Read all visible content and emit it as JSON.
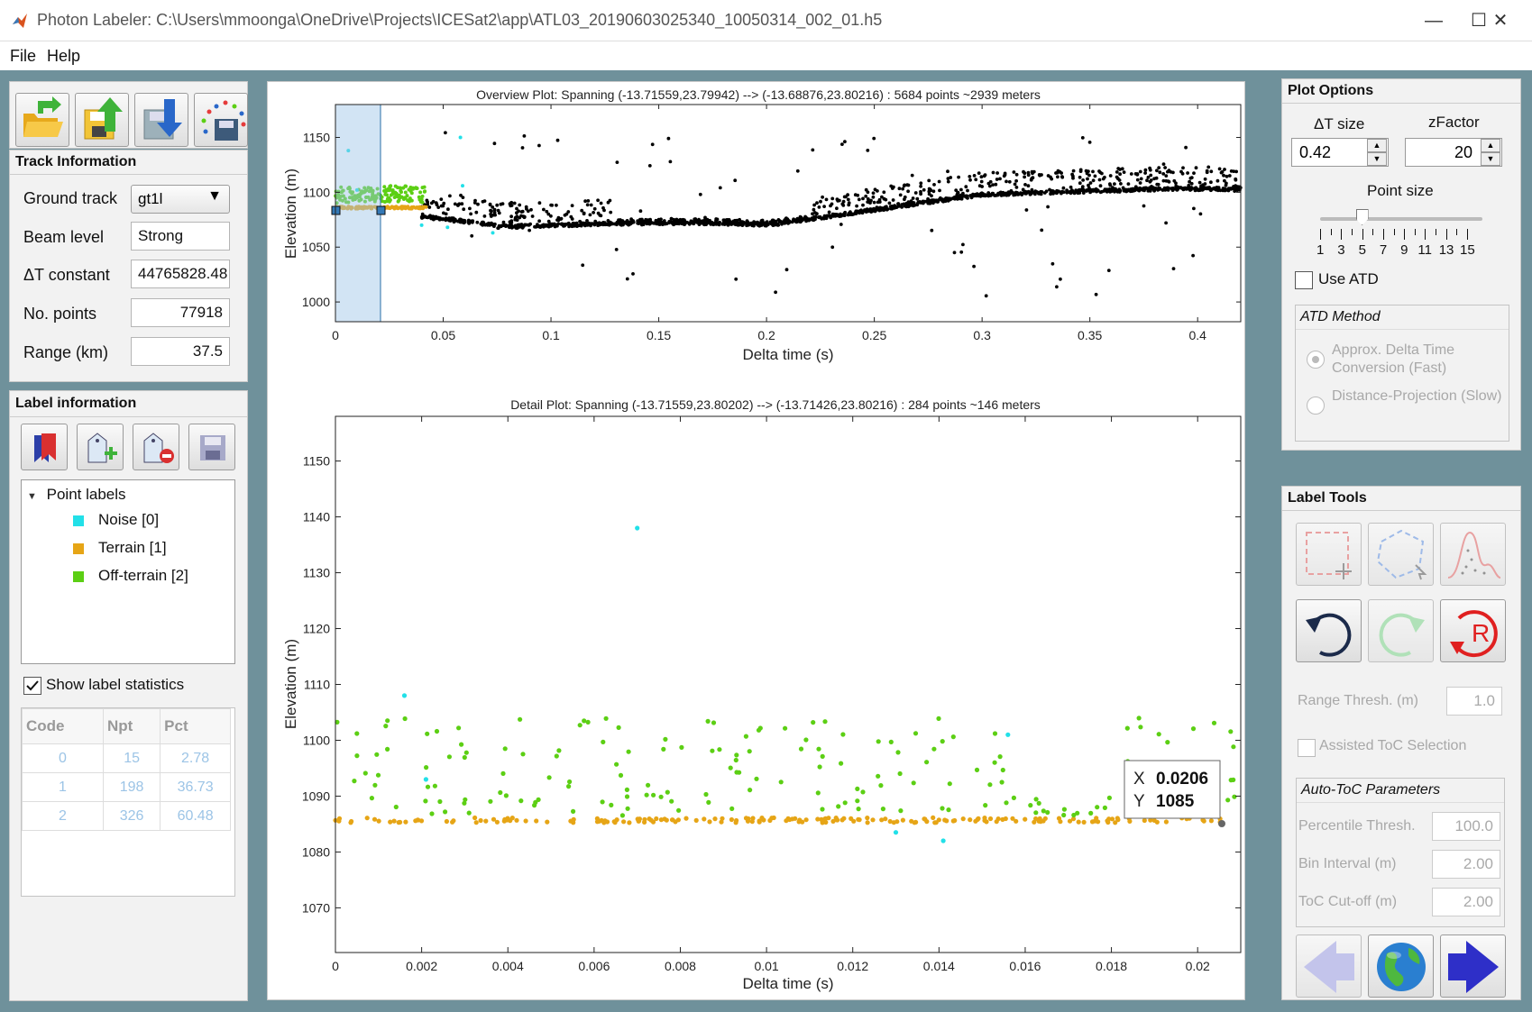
{
  "window": {
    "title": "Photon Labeler: C:\\Users\\mmoonga\\OneDrive\\Projects\\ICESat2\\app\\ATL03_20190603025340_10050314_002_01.h5",
    "minimize": "—",
    "maximize": "☐",
    "close": "✕"
  },
  "menu": {
    "file": "File",
    "help": "Help"
  },
  "toolbar": {
    "icons": [
      "open-folder-icon",
      "save-up-icon",
      "save-down-icon",
      "save-points-icon"
    ]
  },
  "track": {
    "title": "Track Information",
    "ground_track_label": "Ground track",
    "ground_track_value": "gt1l",
    "beam_level_label": "Beam level",
    "beam_level_value": "Strong",
    "dt_constant_label": "ΔT constant",
    "dt_constant_value": "44765828.48",
    "npoints_label": "No. points",
    "npoints_value": "77918",
    "range_label": "Range (km)",
    "range_value": "37.5"
  },
  "labels": {
    "title": "Label information",
    "tree_root": "Point labels",
    "items": [
      {
        "name": "Noise [0]",
        "color": "#22e0e8"
      },
      {
        "name": "Terrain [1]",
        "color": "#e6a516"
      },
      {
        "name": "Off-terrain [2]",
        "color": "#5ccf14"
      }
    ],
    "show_stats_label": "Show label statistics",
    "stats_headers": [
      "Code",
      "Npt",
      "Pct"
    ],
    "stats_rows": [
      [
        "0",
        "15",
        "2.78"
      ],
      [
        "1",
        "198",
        "36.73"
      ],
      [
        "2",
        "326",
        "60.48"
      ]
    ]
  },
  "overview": {
    "title": "Overview Plot: Spanning (-13.71559,23.79942) --> (-13.68876,23.80216) : 5684 points ~2939 meters",
    "xlabel": "Delta time (s)",
    "ylabel": "Elevation (m)",
    "xticks": [
      "0",
      "0.05",
      "0.1",
      "0.15",
      "0.2",
      "0.25",
      "0.3",
      "0.35",
      "0.4"
    ],
    "yticks": [
      "1000",
      "1050",
      "1100",
      "1150"
    ]
  },
  "detail": {
    "title": "Detail Plot: Spanning (-13.71559,23.80202) --> (-13.71426,23.80216) : 284 points ~146 meters",
    "xlabel": "Delta time (s)",
    "ylabel": "Elevation (m)",
    "xticks": [
      "0",
      "0.002",
      "0.004",
      "0.006",
      "0.008",
      "0.01",
      "0.012",
      "0.014",
      "0.016",
      "0.018",
      "0.02"
    ],
    "yticks": [
      "1070",
      "1080",
      "1090",
      "1100",
      "1110",
      "1120",
      "1130",
      "1140",
      "1150"
    ],
    "tooltip_x_label": "X",
    "tooltip_x": "0.0206",
    "tooltip_y_label": "Y",
    "tooltip_y": "1085"
  },
  "plot_options": {
    "title": "Plot Options",
    "dt_size_label": "ΔT size",
    "dt_size_value": "0.42",
    "zfactor_label": "zFactor",
    "zfactor_value": "20",
    "point_size_label": "Point size",
    "point_size_value": 5,
    "point_size_ticks": [
      "1",
      "3",
      "5",
      "7",
      "9",
      "11",
      "13",
      "15"
    ],
    "use_atd_label": "Use ATD",
    "atd_method_title": "ATD Method",
    "atd_option1": "Approx. Delta Time Conversion (Fast)",
    "atd_option2": "Distance-Projection (Slow)"
  },
  "label_tools": {
    "title": "Label Tools",
    "range_thresh_label": "Range Thresh. (m)",
    "range_thresh_value": "1.0",
    "assisted_toc_label": "Assisted ToC Selection",
    "auto_toc_title": "Auto-ToC Parameters",
    "percentile_label": "Percentile Thresh.",
    "percentile_value": "100.0",
    "bin_interval_label": "Bin Interval (m)",
    "bin_interval_value": "2.00",
    "toc_cutoff_label": "ToC Cut-off (m)",
    "toc_cutoff_value": "2.00"
  }
}
